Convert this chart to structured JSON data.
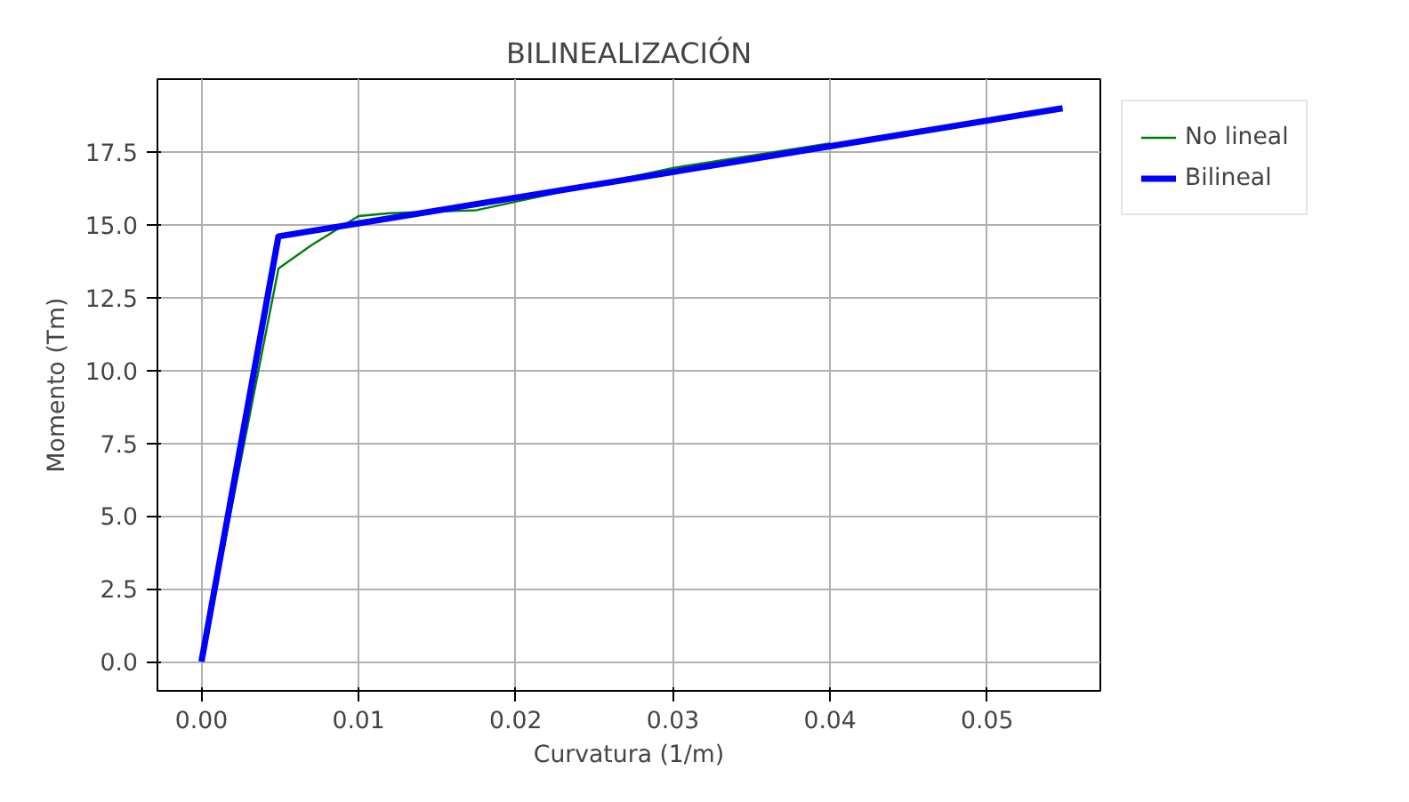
{
  "chart_data": {
    "type": "line",
    "title": "BILINEALIZACIÓN",
    "xlabel": "Curvatura (1/m)",
    "ylabel": "Momento (Tm)",
    "series": [
      {
        "name": "No lineal",
        "color": "#008000",
        "x": [
          0,
          0.0049,
          0.007,
          0.01,
          0.012,
          0.0175,
          0.03,
          0.04
        ],
        "values": [
          0,
          13.5,
          14.3,
          15.3,
          15.4,
          15.5,
          16.95,
          17.8
        ]
      },
      {
        "name": "Bilineal",
        "color": "#0000ff",
        "x": [
          0,
          0.0049,
          0.0548
        ],
        "values": [
          0,
          14.6,
          19.0
        ]
      }
    ],
    "xlim": [
      -0.0028,
      0.0572
    ],
    "ylim": [
      -1.0,
      20.0
    ],
    "xticks": [
      {
        "value": 0,
        "label": "0.00"
      },
      0.01,
      0.02,
      0.03,
      0.04,
      0.05
    ],
    "yticks": [
      {
        "value": 0,
        "label": "0.0"
      },
      {
        "value": 2.5,
        "label": "2.5"
      },
      {
        "value": 5,
        "label": "5.0"
      },
      7.5,
      {
        "value": 10,
        "label": "10.0"
      },
      12.5,
      {
        "value": 15,
        "label": "15.0"
      },
      17.5
    ],
    "grid": true,
    "legend": "top right",
    "line_style": "solid",
    "marker": "none"
  }
}
